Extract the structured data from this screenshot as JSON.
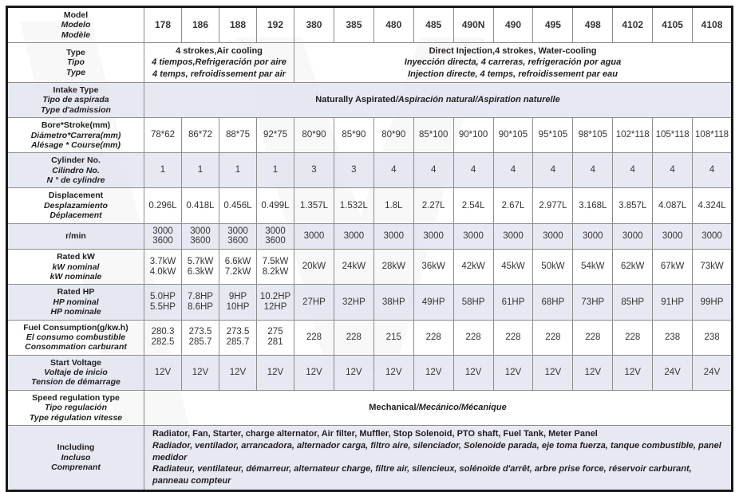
{
  "colors": {
    "row_shaded": "#e5e8f1",
    "row_plain": "#ffffff",
    "border_outer": "#191919",
    "border_inner": "#8d8d8d",
    "text_label": "#221e20",
    "text_value": "#363331",
    "watermark": "#ededed"
  },
  "table": {
    "columns_count": 16,
    "rows": [
      {
        "name": "model",
        "shaded": false,
        "bold_cells": true,
        "label": [
          [
            {
              "t": "Model",
              "i": 0
            }
          ],
          [
            {
              "t": "Modelo",
              "i": 1
            }
          ],
          [
            {
              "t": "Modèle",
              "i": 1
            }
          ]
        ],
        "cells": [
          [
            "178"
          ],
          [
            "186"
          ],
          [
            "188"
          ],
          [
            "192"
          ],
          [
            "380"
          ],
          [
            "385"
          ],
          [
            "480"
          ],
          [
            "485"
          ],
          [
            "490N"
          ],
          [
            "490"
          ],
          [
            "495"
          ],
          [
            "498"
          ],
          [
            "4102"
          ],
          [
            "4105"
          ],
          [
            "4108"
          ]
        ]
      },
      {
        "name": "type",
        "shaded": false,
        "label": [
          [
            {
              "t": "Type",
              "i": 0
            }
          ],
          [
            {
              "t": "Tipo",
              "i": 1
            }
          ],
          [
            {
              "t": "Type",
              "i": 1
            }
          ]
        ],
        "spans": [
          {
            "cols": 4,
            "lines": [
              [
                {
                  "t": "4 strokes,Air cooling",
                  "i": 0
                }
              ],
              [
                {
                  "t": "4 tiempos,Refrigeración por aire",
                  "i": 1
                }
              ],
              [
                {
                  "t": "4 temps, refroidissement par air",
                  "i": 1
                }
              ]
            ]
          },
          {
            "cols": 11,
            "lines": [
              [
                {
                  "t": "Direct Injection,4 strokes, Water-cooling",
                  "i": 0
                }
              ],
              [
                {
                  "t": "Inyección directa, 4 carreras, refrigeración por agua",
                  "i": 1
                }
              ],
              [
                {
                  "t": "Injection directe, 4 temps, refroidissement par eau",
                  "i": 1
                }
              ]
            ]
          }
        ]
      },
      {
        "name": "intake-type",
        "shaded": true,
        "label": [
          [
            {
              "t": "Intake Type",
              "i": 0
            }
          ],
          [
            {
              "t": "Tipo de aspirada",
              "i": 1
            }
          ],
          [
            {
              "t": "Type d'admission",
              "i": 1
            }
          ]
        ],
        "spans": [
          {
            "cols": 15,
            "lines": [
              [
                {
                  "t": "Naturally Aspirated",
                  "i": 0
                },
                {
                  "t": "/Aspiración natural/Aspiration naturelle",
                  "i": 1
                }
              ]
            ]
          }
        ]
      },
      {
        "name": "bore-stroke",
        "shaded": false,
        "label": [
          [
            {
              "t": "Bore*Stroke(mm)",
              "i": 0
            }
          ],
          [
            {
              "t": "Diámetro*Carrera(mm)",
              "i": 1
            }
          ],
          [
            {
              "t": "Alésage * Course(mm)",
              "i": 1
            }
          ]
        ],
        "cells": [
          [
            "78*62"
          ],
          [
            "86*72"
          ],
          [
            "88*75"
          ],
          [
            "92*75"
          ],
          [
            "80*90"
          ],
          [
            "85*90"
          ],
          [
            "80*90"
          ],
          [
            "85*100"
          ],
          [
            "90*100"
          ],
          [
            "90*105"
          ],
          [
            "95*105"
          ],
          [
            "98*105"
          ],
          [
            "102*118"
          ],
          [
            "105*118"
          ],
          [
            "108*118"
          ]
        ]
      },
      {
        "name": "cylinder-no",
        "shaded": true,
        "label": [
          [
            {
              "t": "Cylinder No.",
              "i": 0
            }
          ],
          [
            {
              "t": "Cilindro No.",
              "i": 1
            }
          ],
          [
            {
              "t": "N ° de cylindre",
              "i": 1
            }
          ]
        ],
        "cells": [
          [
            "1"
          ],
          [
            "1"
          ],
          [
            "1"
          ],
          [
            "1"
          ],
          [
            "3"
          ],
          [
            "3"
          ],
          [
            "4"
          ],
          [
            "4"
          ],
          [
            "4"
          ],
          [
            "4"
          ],
          [
            "4"
          ],
          [
            "4"
          ],
          [
            "4"
          ],
          [
            "4"
          ],
          [
            "4"
          ]
        ]
      },
      {
        "name": "displacement",
        "shaded": false,
        "label": [
          [
            {
              "t": "Displacement",
              "i": 0
            }
          ],
          [
            {
              "t": "Desplazamiento",
              "i": 1
            }
          ],
          [
            {
              "t": "Déplacement",
              "i": 1
            }
          ]
        ],
        "cells": [
          [
            "0.296L"
          ],
          [
            "0.418L"
          ],
          [
            "0.456L"
          ],
          [
            "0.499L"
          ],
          [
            "1.357L"
          ],
          [
            "1.532L"
          ],
          [
            "1.8L"
          ],
          [
            "2.27L"
          ],
          [
            "2.54L"
          ],
          [
            "2.67L"
          ],
          [
            "2.977L"
          ],
          [
            "3.168L"
          ],
          [
            "3.857L"
          ],
          [
            "4.087L"
          ],
          [
            "4.324L"
          ]
        ]
      },
      {
        "name": "rpm",
        "shaded": true,
        "label": [
          [
            {
              "t": "r/min",
              "i": 0
            }
          ]
        ],
        "cells": [
          [
            "3000",
            "3600"
          ],
          [
            "3000",
            "3600"
          ],
          [
            "3000",
            "3600"
          ],
          [
            "3000",
            "3600"
          ],
          [
            "3000"
          ],
          [
            "3000"
          ],
          [
            "3000"
          ],
          [
            "3000"
          ],
          [
            "3000"
          ],
          [
            "3000"
          ],
          [
            "3000"
          ],
          [
            "3000"
          ],
          [
            "3000"
          ],
          [
            "3000"
          ],
          [
            "3000"
          ]
        ]
      },
      {
        "name": "rated-kw",
        "shaded": false,
        "label": [
          [
            {
              "t": "Rated kW",
              "i": 0
            }
          ],
          [
            {
              "t": "kW nominal",
              "i": 1
            }
          ],
          [
            {
              "t": "kW nominale",
              "i": 1
            }
          ]
        ],
        "cells": [
          [
            "3.7kW",
            "4.0kW"
          ],
          [
            "5.7kW",
            "6.3kW"
          ],
          [
            "6.6kW",
            "7.2kW"
          ],
          [
            "7.5kW",
            "8.2kW"
          ],
          [
            "20kW"
          ],
          [
            "24kW"
          ],
          [
            "28kW"
          ],
          [
            "36kW"
          ],
          [
            "42kW"
          ],
          [
            "45kW"
          ],
          [
            "50kW"
          ],
          [
            "54kW"
          ],
          [
            "62kW"
          ],
          [
            "67kW"
          ],
          [
            "73kW"
          ]
        ]
      },
      {
        "name": "rated-hp",
        "shaded": true,
        "label": [
          [
            {
              "t": "Rated HP",
              "i": 0
            }
          ],
          [
            {
              "t": "HP nominal",
              "i": 1
            }
          ],
          [
            {
              "t": "HP nominale",
              "i": 1
            }
          ]
        ],
        "cells": [
          [
            "5.0HP",
            "5.5HP"
          ],
          [
            "7.8HP",
            "8.6HP"
          ],
          [
            "9HP",
            "10HP"
          ],
          [
            "10.2HP",
            "12HP"
          ],
          [
            "27HP"
          ],
          [
            "32HP"
          ],
          [
            "38HP"
          ],
          [
            "49HP"
          ],
          [
            "58HP"
          ],
          [
            "61HP"
          ],
          [
            "68HP"
          ],
          [
            "73HP"
          ],
          [
            "85HP"
          ],
          [
            "91HP"
          ],
          [
            "99HP"
          ]
        ]
      },
      {
        "name": "fuel-consumption",
        "shaded": false,
        "label": [
          [
            {
              "t": "Fuel Consumption(g/kw.h)",
              "i": 0
            }
          ],
          [
            {
              "t": "El consumo combustible",
              "i": 1
            }
          ],
          [
            {
              "t": "Consommation carburant",
              "i": 1
            }
          ]
        ],
        "cells": [
          [
            "280.3",
            "282.5"
          ],
          [
            "273.5",
            "285.7"
          ],
          [
            "273.5",
            "285.7"
          ],
          [
            "275",
            "281"
          ],
          [
            "228"
          ],
          [
            "228"
          ],
          [
            "215"
          ],
          [
            "228"
          ],
          [
            "228"
          ],
          [
            "228"
          ],
          [
            "228"
          ],
          [
            "228"
          ],
          [
            "228"
          ],
          [
            "238"
          ],
          [
            "238"
          ]
        ]
      },
      {
        "name": "start-voltage",
        "shaded": true,
        "label": [
          [
            {
              "t": "Start Voltage",
              "i": 0
            }
          ],
          [
            {
              "t": "Voltaje de inicio",
              "i": 1
            }
          ],
          [
            {
              "t": "Tension de démarrage",
              "i": 1
            }
          ]
        ],
        "cells": [
          [
            "12V"
          ],
          [
            "12V"
          ],
          [
            "12V"
          ],
          [
            "12V"
          ],
          [
            "12V"
          ],
          [
            "12V"
          ],
          [
            "12V"
          ],
          [
            "12V"
          ],
          [
            "12V"
          ],
          [
            "12V"
          ],
          [
            "12V"
          ],
          [
            "12V"
          ],
          [
            "12V"
          ],
          [
            "24V"
          ],
          [
            "24V"
          ]
        ]
      },
      {
        "name": "speed-regulation",
        "shaded": false,
        "label": [
          [
            {
              "t": "Speed regulation type",
              "i": 0
            }
          ],
          [
            {
              "t": "Tipo regulación",
              "i": 1
            }
          ],
          [
            {
              "t": "Type régulation vitesse",
              "i": 1
            }
          ]
        ],
        "spans": [
          {
            "cols": 15,
            "lines": [
              [
                {
                  "t": "Mechanical",
                  "i": 0
                },
                {
                  "t": "/Mecánico/Mécanique",
                  "i": 1
                }
              ]
            ]
          }
        ]
      },
      {
        "name": "including",
        "shaded": true,
        "label": [
          [
            {
              "t": "Including",
              "i": 0
            }
          ],
          [
            {
              "t": "Incluso",
              "i": 1
            }
          ],
          [
            {
              "t": "Comprenant",
              "i": 1
            }
          ]
        ],
        "spans": [
          {
            "cols": 15,
            "align": "left",
            "lines": [
              [
                {
                  "t": "Radiator, Fan, Starter, charge alternator, Air filter, Muffler, Stop Solenoid, PTO shaft, Fuel Tank, Meter Panel",
                  "i": 0
                }
              ],
              [
                {
                  "t": "Radiador, ventilador, arrancadora, alternador carga, filtro aire, silenciador, Solenoide parada, eje toma fuerza, tanque combustible, panel medidor",
                  "i": 1
                }
              ],
              [
                {
                  "t": "Radiateur, ventilateur, démarreur, alternateur charge, filtre air, silencieux, solénoïde d'arrêt, arbre prise force, réservoir carburant, panneau compteur",
                  "i": 1
                }
              ]
            ]
          }
        ]
      }
    ]
  }
}
